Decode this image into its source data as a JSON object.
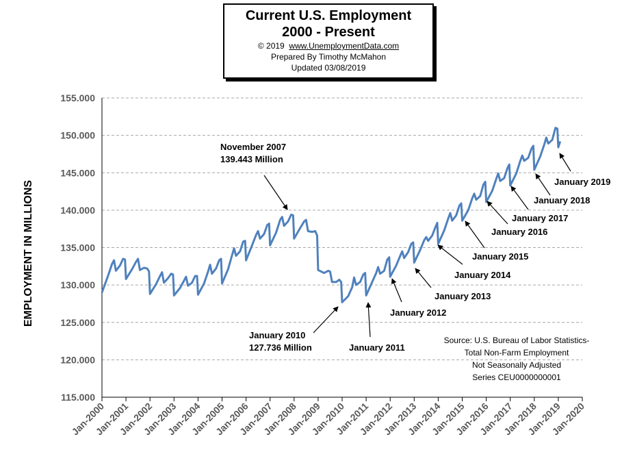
{
  "header": {
    "title_line1": "Current U.S. Employment",
    "title_line2": "2000 - Present",
    "copyright_prefix": "© 2019",
    "website": "www.UnemploymentData.com",
    "prepared_by": "Prepared  By Timothy  McMahon",
    "updated": "Updated   03/08/2019"
  },
  "source_note": {
    "line1": "Source: U.S.  Bureau of Labor Statistics-",
    "line2": "Total Non-Farm Employment",
    "line3": "Not Seasonally Adjusted",
    "line4": "Series CEU0000000001"
  },
  "colors": {
    "series": "#4F81BD",
    "grid": "#A6A6A6",
    "axis": "#000000"
  },
  "chart_data": {
    "type": "line",
    "ylabel": "EMPLOYMENT IN MILLIONS",
    "xlabel": "",
    "ylim": [
      115,
      155
    ],
    "xlim": [
      2000,
      2020
    ],
    "grid": true,
    "y_ticks": [
      "115.000",
      "120.000",
      "125.000",
      "130.000",
      "135.000",
      "140.000",
      "145.000",
      "150.000",
      "155.000"
    ],
    "x_ticks": [
      "Jan-2000",
      "Jan-2001",
      "Jan-2002",
      "Jan-2003",
      "Jan-2004",
      "Jan-2005",
      "Jan-2006",
      "Jan-2007",
      "Jan-2008",
      "Jan-2009",
      "Jan-2010",
      "Jan-2011",
      "Jan-2012",
      "Jan-2013",
      "Jan-2014",
      "Jan-2015",
      "Jan-2016",
      "Jan-2017",
      "Jan-2018",
      "Jan-2019",
      "Jan-2020"
    ],
    "series": [
      {
        "values": [
          [
            2000.0,
            129.0
          ],
          [
            2000.25,
            131.2
          ],
          [
            2000.42,
            132.8
          ],
          [
            2000.5,
            133.3
          ],
          [
            2000.58,
            131.9
          ],
          [
            2000.75,
            132.6
          ],
          [
            2000.88,
            133.5
          ],
          [
            2000.96,
            133.4
          ],
          [
            2001.0,
            130.8
          ],
          [
            2001.25,
            132.1
          ],
          [
            2001.42,
            133.1
          ],
          [
            2001.5,
            133.5
          ],
          [
            2001.58,
            132.0
          ],
          [
            2001.75,
            132.3
          ],
          [
            2001.88,
            132.2
          ],
          [
            2001.96,
            131.8
          ],
          [
            2002.0,
            128.8
          ],
          [
            2002.25,
            130.1
          ],
          [
            2002.42,
            131.2
          ],
          [
            2002.5,
            131.7
          ],
          [
            2002.58,
            130.3
          ],
          [
            2002.75,
            130.9
          ],
          [
            2002.88,
            131.5
          ],
          [
            2002.96,
            131.4
          ],
          [
            2003.0,
            128.6
          ],
          [
            2003.25,
            129.6
          ],
          [
            2003.42,
            130.6
          ],
          [
            2003.5,
            131.1
          ],
          [
            2003.58,
            129.9
          ],
          [
            2003.75,
            130.3
          ],
          [
            2003.88,
            131.2
          ],
          [
            2003.96,
            131.2
          ],
          [
            2004.0,
            128.7
          ],
          [
            2004.25,
            130.2
          ],
          [
            2004.42,
            131.8
          ],
          [
            2004.5,
            132.7
          ],
          [
            2004.58,
            131.5
          ],
          [
            2004.75,
            132.2
          ],
          [
            2004.88,
            133.3
          ],
          [
            2004.96,
            133.5
          ],
          [
            2005.0,
            130.2
          ],
          [
            2005.25,
            132.1
          ],
          [
            2005.42,
            134.0
          ],
          [
            2005.5,
            134.9
          ],
          [
            2005.58,
            133.9
          ],
          [
            2005.75,
            134.5
          ],
          [
            2005.88,
            135.8
          ],
          [
            2005.96,
            135.9
          ],
          [
            2006.0,
            133.3
          ],
          [
            2006.25,
            135.3
          ],
          [
            2006.42,
            136.7
          ],
          [
            2006.5,
            137.2
          ],
          [
            2006.58,
            136.2
          ],
          [
            2006.75,
            136.8
          ],
          [
            2006.88,
            138.0
          ],
          [
            2006.96,
            138.2
          ],
          [
            2007.0,
            135.3
          ],
          [
            2007.25,
            137.0
          ],
          [
            2007.42,
            138.7
          ],
          [
            2007.5,
            139.1
          ],
          [
            2007.58,
            137.9
          ],
          [
            2007.75,
            138.5
          ],
          [
            2007.88,
            139.4
          ],
          [
            2007.96,
            139.3
          ],
          [
            2008.0,
            136.2
          ],
          [
            2008.25,
            137.6
          ],
          [
            2008.42,
            138.5
          ],
          [
            2008.5,
            138.7
          ],
          [
            2008.58,
            137.2
          ],
          [
            2008.75,
            137.1
          ],
          [
            2008.88,
            137.2
          ],
          [
            2008.96,
            136.6
          ],
          [
            2009.0,
            132.0
          ],
          [
            2009.25,
            131.6
          ],
          [
            2009.42,
            131.9
          ],
          [
            2009.5,
            131.8
          ],
          [
            2009.58,
            130.4
          ],
          [
            2009.75,
            130.4
          ],
          [
            2009.88,
            130.7
          ],
          [
            2009.96,
            130.4
          ],
          [
            2010.0,
            127.7
          ],
          [
            2010.25,
            128.5
          ],
          [
            2010.42,
            129.7
          ],
          [
            2010.5,
            131.0
          ],
          [
            2010.58,
            130.0
          ],
          [
            2010.75,
            130.4
          ],
          [
            2010.88,
            131.4
          ],
          [
            2010.96,
            131.6
          ],
          [
            2011.0,
            128.6
          ],
          [
            2011.25,
            130.4
          ],
          [
            2011.42,
            131.6
          ],
          [
            2011.5,
            132.4
          ],
          [
            2011.58,
            131.5
          ],
          [
            2011.75,
            131.9
          ],
          [
            2011.88,
            133.4
          ],
          [
            2011.96,
            133.7
          ],
          [
            2012.0,
            131.1
          ],
          [
            2012.25,
            132.6
          ],
          [
            2012.42,
            133.9
          ],
          [
            2012.5,
            134.5
          ],
          [
            2012.58,
            133.6
          ],
          [
            2012.75,
            134.4
          ],
          [
            2012.88,
            135.5
          ],
          [
            2012.96,
            135.7
          ],
          [
            2013.0,
            133.0
          ],
          [
            2013.25,
            134.7
          ],
          [
            2013.42,
            136.0
          ],
          [
            2013.5,
            136.4
          ],
          [
            2013.58,
            135.9
          ],
          [
            2013.75,
            136.6
          ],
          [
            2013.88,
            137.7
          ],
          [
            2013.96,
            138.3
          ],
          [
            2014.0,
            135.5
          ],
          [
            2014.25,
            137.3
          ],
          [
            2014.42,
            138.9
          ],
          [
            2014.5,
            139.6
          ],
          [
            2014.58,
            138.6
          ],
          [
            2014.75,
            139.3
          ],
          [
            2014.88,
            140.6
          ],
          [
            2014.96,
            140.9
          ],
          [
            2015.0,
            138.6
          ],
          [
            2015.25,
            140.0
          ],
          [
            2015.42,
            141.6
          ],
          [
            2015.5,
            142.2
          ],
          [
            2015.58,
            141.4
          ],
          [
            2015.75,
            141.9
          ],
          [
            2015.88,
            143.4
          ],
          [
            2015.96,
            143.8
          ],
          [
            2016.0,
            141.1
          ],
          [
            2016.25,
            142.6
          ],
          [
            2016.42,
            144.2
          ],
          [
            2016.5,
            144.9
          ],
          [
            2016.58,
            143.9
          ],
          [
            2016.75,
            144.3
          ],
          [
            2016.88,
            145.6
          ],
          [
            2016.96,
            146.1
          ],
          [
            2017.0,
            143.3
          ],
          [
            2017.25,
            144.9
          ],
          [
            2017.42,
            146.6
          ],
          [
            2017.5,
            147.3
          ],
          [
            2017.58,
            146.6
          ],
          [
            2017.75,
            147.0
          ],
          [
            2017.88,
            148.2
          ],
          [
            2017.96,
            148.6
          ],
          [
            2018.0,
            145.4
          ],
          [
            2018.25,
            147.2
          ],
          [
            2018.42,
            148.8
          ],
          [
            2018.5,
            149.7
          ],
          [
            2018.58,
            148.9
          ],
          [
            2018.75,
            149.4
          ],
          [
            2018.88,
            151.0
          ],
          [
            2018.96,
            150.9
          ],
          [
            2019.0,
            148.4
          ],
          [
            2019.08,
            149.2
          ]
        ]
      }
    ],
    "annotations": [
      {
        "label_lines": [
          "November 2007",
          "139.443  Million"
        ],
        "x": 2007.83,
        "y": 139.443
      },
      {
        "label_lines": [
          "January 2010",
          "127.736  Million"
        ],
        "x": 2010.0,
        "y": 127.736
      },
      {
        "label_lines": [
          "January 2011"
        ],
        "x": 2011.0,
        "y": 128.6
      },
      {
        "label_lines": [
          "January 2012"
        ],
        "x": 2012.0,
        "y": 131.1
      },
      {
        "label_lines": [
          "January 2013"
        ],
        "x": 2013.0,
        "y": 133.0
      },
      {
        "label_lines": [
          "January 2014"
        ],
        "x": 2014.0,
        "y": 135.5
      },
      {
        "label_lines": [
          "January 2015"
        ],
        "x": 2015.0,
        "y": 138.6
      },
      {
        "label_lines": [
          "January 2016"
        ],
        "x": 2016.0,
        "y": 141.1
      },
      {
        "label_lines": [
          "January 2017"
        ],
        "x": 2017.0,
        "y": 143.3
      },
      {
        "label_lines": [
          "January 2018"
        ],
        "x": 2018.0,
        "y": 145.4
      },
      {
        "label_lines": [
          "January 2019"
        ],
        "x": 2019.0,
        "y": 148.4
      }
    ]
  }
}
